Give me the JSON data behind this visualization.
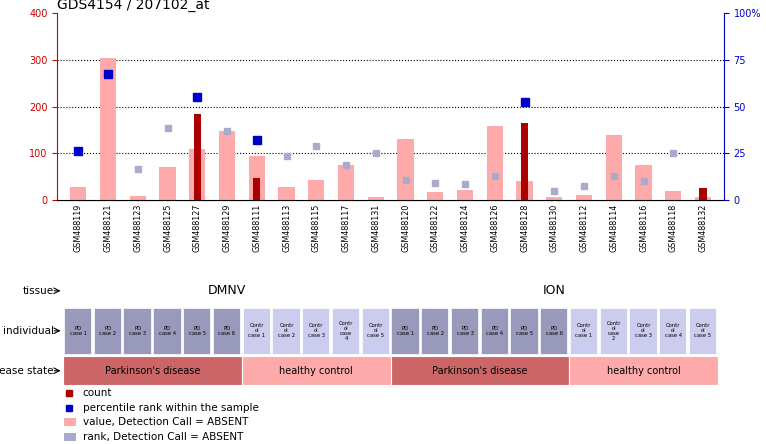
{
  "title": "GDS4154 / 207102_at",
  "samples": [
    "GSM488119",
    "GSM488121",
    "GSM488123",
    "GSM488125",
    "GSM488127",
    "GSM488129",
    "GSM488111",
    "GSM488113",
    "GSM488115",
    "GSM488117",
    "GSM488131",
    "GSM488120",
    "GSM488122",
    "GSM488124",
    "GSM488126",
    "GSM488128",
    "GSM488130",
    "GSM488112",
    "GSM488114",
    "GSM488116",
    "GSM488118",
    "GSM488132"
  ],
  "count_values": [
    0,
    0,
    0,
    0,
    185,
    0,
    47,
    0,
    0,
    0,
    0,
    0,
    0,
    0,
    0,
    165,
    0,
    0,
    0,
    0,
    0,
    25
  ],
  "rank_values": [
    105,
    270,
    0,
    0,
    220,
    0,
    128,
    0,
    0,
    0,
    0,
    0,
    0,
    0,
    0,
    210,
    0,
    0,
    0,
    0,
    0,
    0
  ],
  "absent_bar_values": [
    28,
    305,
    8,
    70,
    110,
    147,
    95,
    27,
    42,
    75,
    5,
    130,
    17,
    20,
    158,
    40,
    5,
    10,
    140,
    75,
    18,
    5
  ],
  "absent_rank_values": [
    0,
    270,
    65,
    155,
    0,
    147,
    0,
    95,
    115,
    75,
    100,
    42,
    35,
    33,
    52,
    0,
    18,
    30,
    50,
    40,
    100,
    0
  ],
  "ylim_left": [
    0,
    400
  ],
  "ylim_right": [
    0,
    100
  ],
  "yticks_left": [
    0,
    100,
    200,
    300,
    400
  ],
  "yticks_right": [
    0,
    25,
    50,
    75,
    100
  ],
  "tissue_color": "#66cc66",
  "individual_pd_color": "#9999bb",
  "individual_ctrl_color": "#ccccee",
  "disease_pd_color": "#cc6666",
  "disease_ctrl_color": "#ffaaaa",
  "bar_dark_red": "#aa0000",
  "bar_light_red": "#ffaaaa",
  "dot_dark_blue": "#0000cc",
  "dot_light_blue": "#aaaacc",
  "bg_color": "#ffffff",
  "label_color_left": "#cc0000",
  "label_color_right": "#0000cc",
  "individual_labels": [
    "PD\ncase 1",
    "PD\ncase 2",
    "PD\ncase 3",
    "PD\ncase 4",
    "PD\ncase 5",
    "PD\ncase 6",
    "Contr\nol\ncase 1",
    "Contr\nol\ncase 2",
    "Contr\nol\ncase 3",
    "Contr\nol\ncase\n4",
    "Contr\nol\ncase 5",
    "PD\ncase 1",
    "PD\ncase 2",
    "PD\ncase 3",
    "PD\ncase 4",
    "PD\ncase 5",
    "PD\ncase 6",
    "Contr\nol\ncase 1",
    "Contr\nol\ncase\n2",
    "Contr\nol\ncase 3",
    "Contr\nol\ncase 4",
    "Contr\nol\ncase 5"
  ],
  "is_pd": [
    1,
    1,
    1,
    1,
    1,
    1,
    0,
    0,
    0,
    0,
    0,
    1,
    1,
    1,
    1,
    1,
    1,
    0,
    0,
    0,
    0,
    0
  ]
}
